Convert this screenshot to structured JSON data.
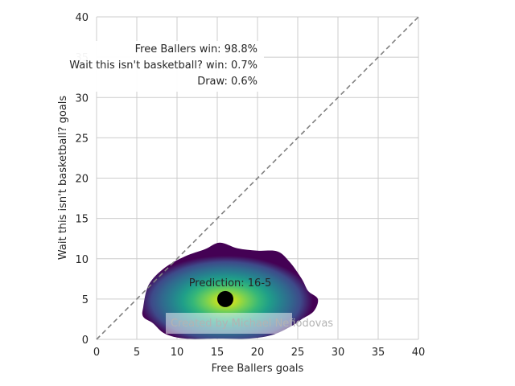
{
  "chart_data": {
    "type": "heatmap",
    "xlabel": "Free Ballers goals",
    "ylabel": "Wait this isn't basketball? goals",
    "xlim": [
      0,
      40
    ],
    "ylim": [
      0,
      40
    ],
    "xticks": [
      0,
      5,
      10,
      15,
      20,
      25,
      30,
      35,
      40
    ],
    "yticks": [
      0,
      5,
      10,
      15,
      20,
      25,
      30,
      35,
      40
    ],
    "grid": true,
    "colormap": "viridis",
    "diagonal": {
      "from": [
        0,
        0
      ],
      "to": [
        40,
        40
      ],
      "style": "dashed",
      "color": "#808080"
    },
    "density": {
      "peak": [
        16,
        5
      ],
      "outline": [
        [
          5.8,
          4.0
        ],
        [
          6.5,
          6.8
        ],
        [
          8.5,
          8.9
        ],
        [
          11.0,
          10.3
        ],
        [
          13.5,
          11.2
        ],
        [
          15.3,
          12.0
        ],
        [
          17.5,
          11.3
        ],
        [
          20.0,
          11.0
        ],
        [
          22.5,
          10.9
        ],
        [
          24.0,
          9.6
        ],
        [
          25.5,
          7.5
        ],
        [
          26.3,
          6.0
        ],
        [
          27.5,
          5.0
        ],
        [
          27.0,
          3.5
        ],
        [
          25.5,
          2.5
        ],
        [
          24.5,
          1.8
        ],
        [
          22.0,
          0.6
        ],
        [
          19.0,
          0.1
        ],
        [
          15.0,
          0.1
        ],
        [
          11.0,
          0.1
        ],
        [
          8.5,
          0.7
        ],
        [
          7.0,
          2.0
        ],
        [
          5.8,
          2.8
        ]
      ]
    },
    "prediction": {
      "label": "Prediction: 16-5",
      "x": 16,
      "y": 5
    },
    "outcomes": [
      {
        "text": "Free Ballers win: 98.8%"
      },
      {
        "text": "Wait this isn't basketball? win: 0.7%"
      },
      {
        "text": "Draw: 0.6%"
      }
    ],
    "watermark": "Created by Michael Nefiodovas"
  }
}
